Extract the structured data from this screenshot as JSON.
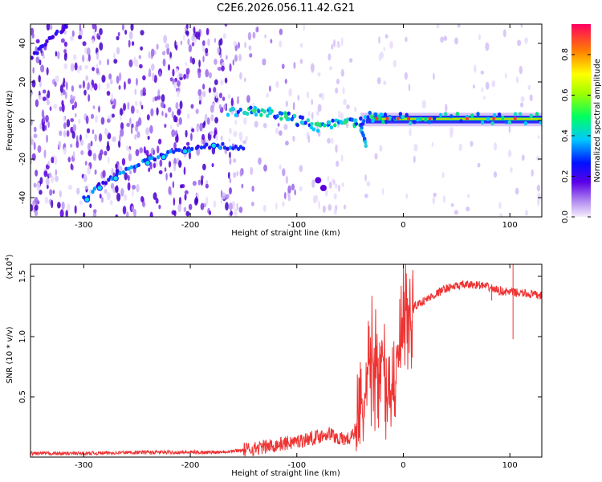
{
  "figure": {
    "title": "C2E6.2026.056.11.42.G21"
  },
  "colors": {
    "snr_line": "#ee3333",
    "axis": "#000000"
  },
  "chart_data": [
    {
      "id": "spectrogram",
      "type": "heatmap",
      "title": "C2E6.2026.056.11.42.G21",
      "xlabel": "Height of straight line (km)",
      "ylabel": "Frequency (Hz)",
      "xlim": [
        -350,
        130
      ],
      "ylim": [
        -50,
        50
      ],
      "xticks": [
        -300,
        -200,
        -100,
        0,
        100
      ],
      "yticks": [
        -40,
        -20,
        0,
        20,
        40
      ],
      "colorbar": {
        "label": "Normalized spectral amplitude",
        "range": [
          0,
          0.95
        ],
        "ticks": [
          "0.0",
          "0.2",
          "0.4",
          "0.6",
          "0.8"
        ],
        "tick_values": [
          0,
          0.2,
          0.4,
          0.6,
          0.8
        ]
      },
      "features": {
        "main_track": [
          [
            -165,
            4
          ],
          [
            -150,
            6
          ],
          [
            -140,
            5
          ],
          [
            -130,
            5
          ],
          [
            -120,
            4
          ],
          [
            -110,
            2
          ],
          [
            -100,
            0
          ],
          [
            -90,
            -2
          ],
          [
            -80,
            -3
          ],
          [
            -70,
            -2
          ],
          [
            -60,
            -1
          ],
          [
            -50,
            -1
          ],
          [
            -40,
            0
          ],
          [
            -30,
            2
          ],
          [
            -20,
            1
          ],
          [
            -10,
            1
          ],
          [
            0,
            1
          ],
          [
            20,
            1
          ],
          [
            50,
            1
          ],
          [
            80,
            1
          ],
          [
            100,
            1
          ],
          [
            130,
            1
          ]
        ],
        "descending_track": [
          [
            -300,
            -41
          ],
          [
            -290,
            -36
          ],
          [
            -280,
            -32
          ],
          [
            -270,
            -28
          ],
          [
            -260,
            -25
          ],
          [
            -250,
            -23
          ],
          [
            -240,
            -21
          ],
          [
            -230,
            -19
          ],
          [
            -220,
            -17
          ],
          [
            -210,
            -16
          ],
          [
            -200,
            -15
          ],
          [
            -190,
            -14
          ],
          [
            -180,
            -13
          ],
          [
            -170,
            -13
          ],
          [
            -160,
            -14
          ],
          [
            -150,
            -15
          ]
        ],
        "upper_left_track": [
          [
            -350,
            32
          ],
          [
            -340,
            38
          ],
          [
            -330,
            43
          ],
          [
            -320,
            47
          ],
          [
            -315,
            50
          ]
        ],
        "blob": [
          [
            -75,
            -35
          ],
          [
            -80,
            -31
          ]
        ],
        "drop": [
          [
            -40,
            -3
          ],
          [
            -38,
            -8
          ],
          [
            -35,
            -13
          ]
        ]
      }
    },
    {
      "id": "snr",
      "type": "line",
      "xlabel": "Height of straight line (km)",
      "ylabel": "SNR (10 * v/v)",
      "scale_label": "(x10",
      "scale_exponent": "4",
      "scale_close": ")",
      "xlim": [
        -350,
        130
      ],
      "ylim": [
        0,
        1.6
      ],
      "xticks": [
        -300,
        -200,
        -100,
        0,
        100
      ],
      "yticks": [
        0.5,
        1.0,
        1.5
      ],
      "ytick_labels": [
        "0.5",
        "1.0",
        "1.5"
      ],
      "series": [
        {
          "name": "SNR",
          "x": [
            -350,
            -300,
            -250,
            -200,
            -180,
            -160,
            -140,
            -120,
            -100,
            -80,
            -70,
            -60,
            -50,
            -40,
            -35,
            -30,
            -25,
            -20,
            -15,
            -10,
            -5,
            0,
            5,
            10,
            20,
            30,
            40,
            50,
            60,
            70,
            80,
            90,
            100,
            110,
            120,
            130
          ],
          "y": [
            0.03,
            0.03,
            0.04,
            0.04,
            0.04,
            0.05,
            0.07,
            0.1,
            0.13,
            0.17,
            0.2,
            0.15,
            0.15,
            0.3,
            0.5,
            0.8,
            0.75,
            0.8,
            0.6,
            0.55,
            0.8,
            1.05,
            1.15,
            1.25,
            1.3,
            1.35,
            1.4,
            1.42,
            1.43,
            1.43,
            1.41,
            1.38,
            1.37,
            1.36,
            1.35,
            1.34
          ]
        }
      ]
    }
  ]
}
